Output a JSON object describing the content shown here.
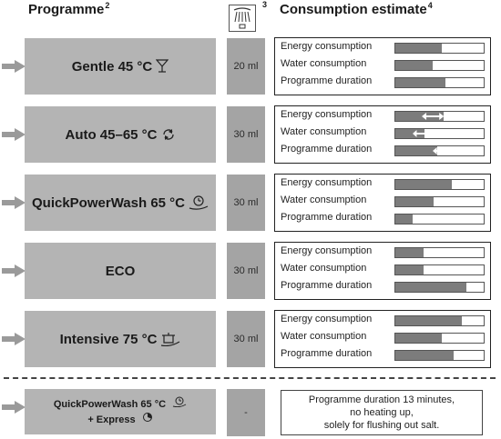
{
  "header": {
    "programme_label": "Programme",
    "programme_sup": "2",
    "detergent_icon": "detergent-dispenser-icon",
    "detergent_sup": "3",
    "consumption_label": "Consumption estimate",
    "consumption_sup": "4"
  },
  "row_labels": {
    "energy": "Energy consumption",
    "water": "Water consumption",
    "duration": "Programme duration"
  },
  "colors": {
    "programme_bg": "#b4b4b4",
    "dose_bg": "#a4a4a4",
    "bar_fill": "#7c7c7c",
    "arrow": "#9a9a9a"
  },
  "programmes": [
    {
      "name": "Gentle 45 °C",
      "icon": "glass-icon",
      "dose": "20 ml",
      "energy": 0.53,
      "water": 0.42,
      "duration": 0.57
    },
    {
      "name": "Auto 45–65 °C",
      "icon": "auto-cycle-icon",
      "dose": "30 ml",
      "energy": 0.55,
      "water": 0.33,
      "duration": 0.47,
      "ranges": {
        "energy": [
          0.3,
          0.55
        ],
        "water": [
          0.2,
          0.42
        ],
        "duration": [
          0.42,
          0.65
        ]
      }
    },
    {
      "name": "QuickPowerWash 65 °C",
      "icon": "quick-power-wash-icon",
      "dose": "30 ml",
      "energy": 0.64,
      "water": 0.43,
      "duration": 0.2
    },
    {
      "name": "ECO",
      "icon": "",
      "dose": "30 ml",
      "energy": 0.32,
      "water": 0.32,
      "duration": 0.8
    },
    {
      "name": "Intensive 75 °C",
      "icon": "intensive-pot-icon",
      "dose": "30 ml",
      "energy": 0.75,
      "water": 0.53,
      "duration": 0.66
    }
  ],
  "extra": {
    "line1": "QuickPowerWash 65 °C",
    "line2": "+ Express",
    "dose": "-",
    "note_lines": [
      "Programme duration 13 minutes,",
      "no heating up,",
      "solely for flushing out salt."
    ]
  }
}
